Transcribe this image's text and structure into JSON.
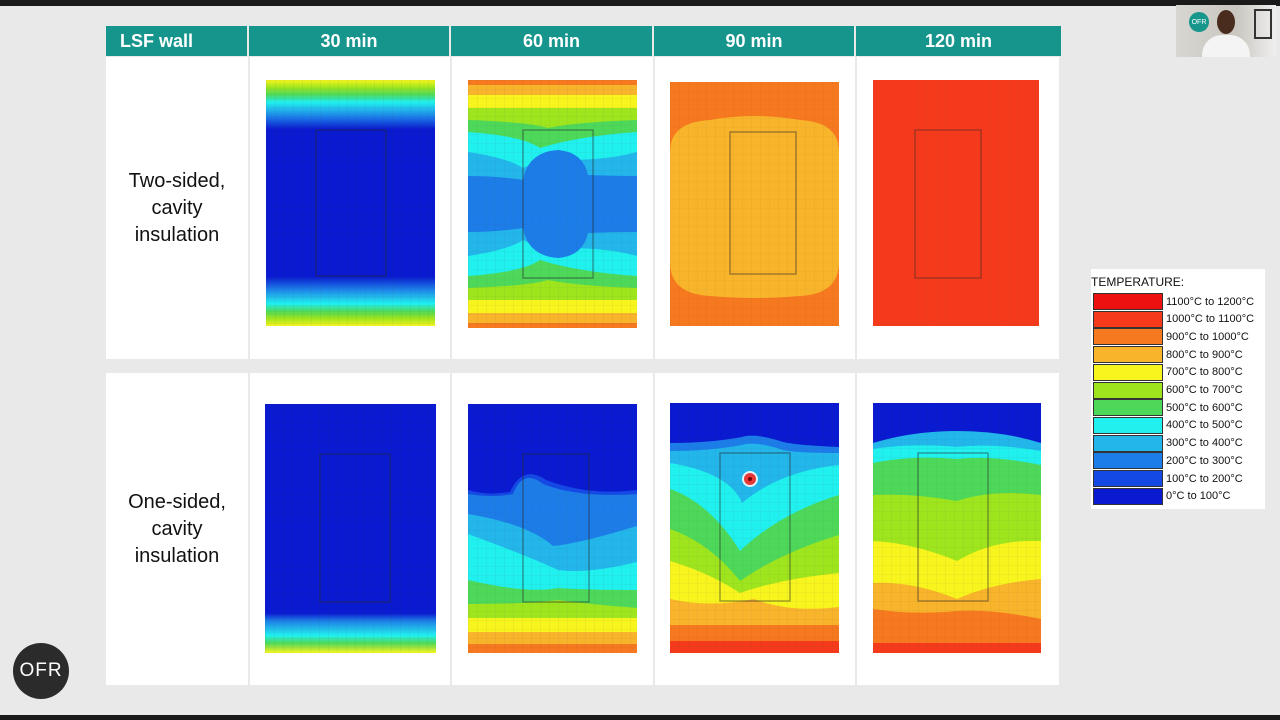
{
  "table": {
    "header": [
      "LSF wall",
      "30 min",
      "60 min",
      "90 min",
      "120 min"
    ],
    "rows": [
      {
        "label_lines": [
          "Two-sided,",
          "cavity",
          "insulation"
        ]
      },
      {
        "label_lines": [
          "One-sided,",
          "cavity",
          "insulation"
        ]
      }
    ]
  },
  "legend": {
    "title": "TEMPERATURE:",
    "items": [
      {
        "label": "1100°C to 1200°C",
        "color": "#ee1111"
      },
      {
        "label": "1000°C to 1100°C",
        "color": "#f53a1c"
      },
      {
        "label": "900°C to 1000°C",
        "color": "#f6781f"
      },
      {
        "label": "800°C to 900°C",
        "color": "#f8b42a"
      },
      {
        "label": "700°C to 800°C",
        "color": "#f7f41e"
      },
      {
        "label": "600°C to 700°C",
        "color": "#9ee51e"
      },
      {
        "label": "500°C to 600°C",
        "color": "#4ed85a"
      },
      {
        "label": "400°C to 500°C",
        "color": "#20f0ee"
      },
      {
        "label": "300°C to 400°C",
        "color": "#22b6ea"
      },
      {
        "label": "200°C to 300°C",
        "color": "#1c7de8"
      },
      {
        "label": "100°C to 200°C",
        "color": "#1449e6"
      },
      {
        "label": "0°C to 100°C",
        "color": "#0a1ad0"
      }
    ]
  },
  "branding": {
    "logo_text": "OFR",
    "webcam_logo_text": "OFR"
  },
  "colors": {
    "header_bg": "#16958d"
  }
}
